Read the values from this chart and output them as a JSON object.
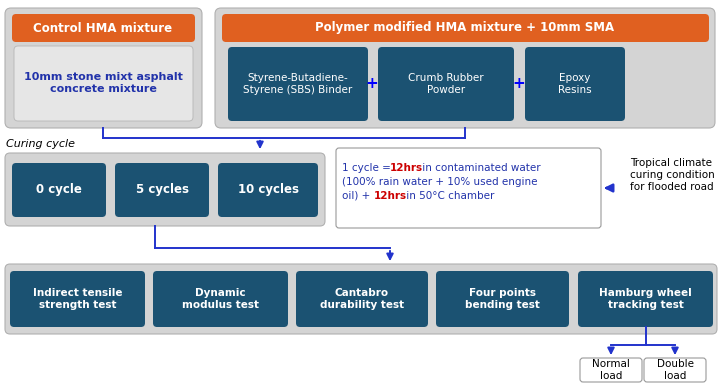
{
  "white": "#ffffff",
  "orange": "#E06020",
  "teal": "#1B5272",
  "light_blue_text": "#1F3FA6",
  "blue_text": "#2233AA",
  "red_text": "#CC0000",
  "arrow_color": "#2233CC",
  "gray_bg": "#d4d4d4",
  "gray_bg2": "#cccccc",
  "cycle_box_bg": "#f5f5f5",
  "plus_color": "#0000FF",
  "top_left_title": "Control HMA mixture",
  "top_left_sub": "10mm stone mixt asphalt\nconcrete mixture",
  "top_right_title": "Polymer modified HMA mixture + 10mm SMA",
  "component1": "Styrene-Butadiene-\nStyrene (SBS) Binder",
  "component2": "Crumb Rubber\nPowder",
  "component3": "Epoxy\nResins",
  "curing_label": "Curing cycle",
  "cycle0": "0 cycle",
  "cycle5": "5 cycles",
  "cycle10": "10 cycles",
  "tropical_text": "Tropical climate\ncuring condition\nfor flooded road",
  "test1": "Indirect tensile\nstrength test",
  "test2": "Dynamic\nmodulus test",
  "test3": "Cantabro\ndurability test",
  "test4": "Four points\nbending test",
  "test5": "Hamburg wheel\ntracking test",
  "subtest1": "Normal\nload",
  "subtest2": "Double\nload",
  "fig_w": 7.22,
  "fig_h": 3.86,
  "dpi": 100
}
